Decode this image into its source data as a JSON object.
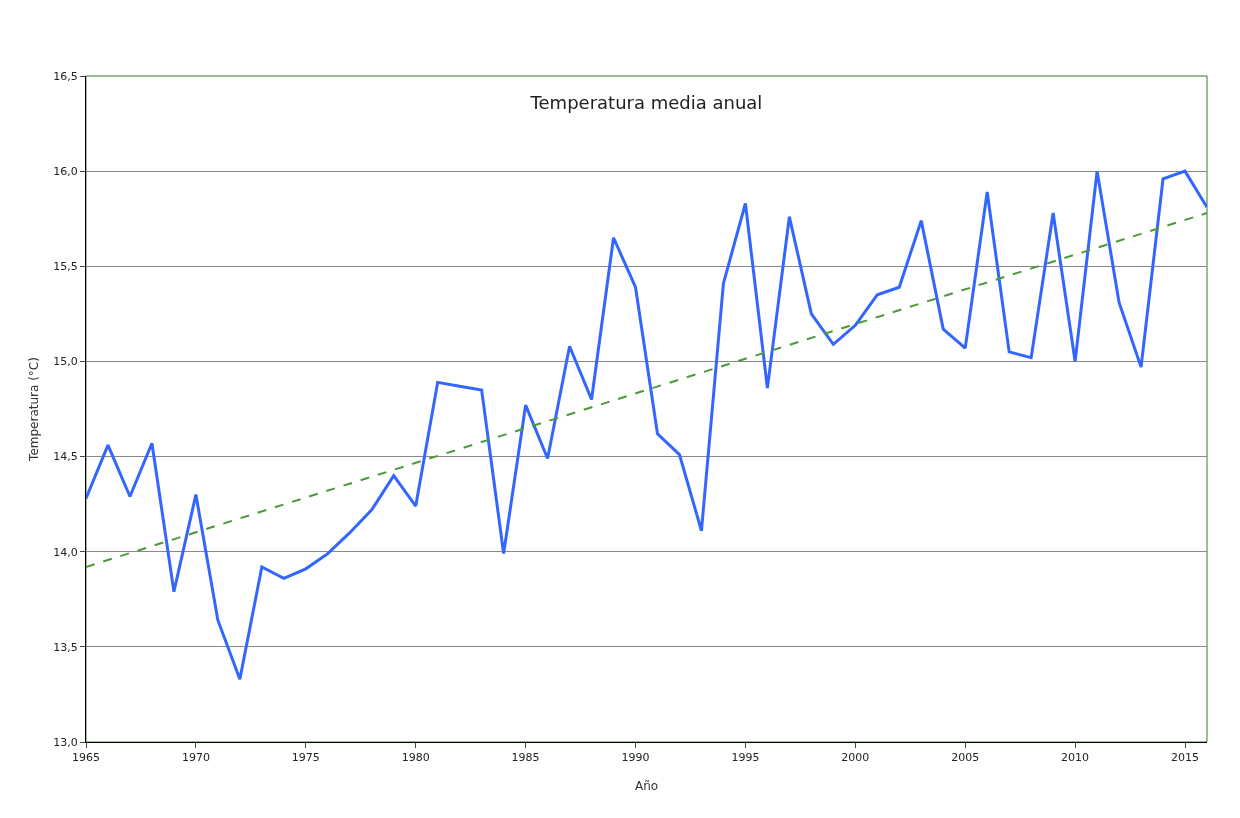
{
  "chart_data": {
    "type": "line",
    "title": "Temperatura media anual",
    "xlabel": "Año",
    "ylabel": "Temperatura (°C)",
    "x": [
      1965,
      1966,
      1967,
      1968,
      1969,
      1970,
      1971,
      1972,
      1973,
      1974,
      1975,
      1976,
      1977,
      1978,
      1979,
      1980,
      1981,
      1982,
      1983,
      1984,
      1985,
      1986,
      1987,
      1988,
      1989,
      1990,
      1991,
      1992,
      1993,
      1994,
      1995,
      1996,
      1997,
      1998,
      1999,
      2000,
      2001,
      2002,
      2003,
      2004,
      2005,
      2006,
      2007,
      2008,
      2009,
      2010,
      2011,
      2012,
      2013,
      2014,
      2015,
      2016
    ],
    "series": [
      {
        "color": "#3366ff",
        "line_style": "solid",
        "values": [
          14.28,
          14.56,
          14.29,
          14.57,
          13.79,
          14.3,
          13.64,
          13.33,
          13.92,
          13.86,
          13.91,
          13.99,
          14.1,
          14.22,
          14.4,
          14.24,
          14.89,
          14.87,
          14.85,
          13.99,
          14.77,
          14.49,
          15.08,
          14.8,
          15.65,
          15.39,
          14.62,
          14.51,
          14.11,
          15.41,
          15.83,
          14.86,
          15.76,
          15.25,
          15.09,
          15.19,
          15.35,
          15.39,
          15.74,
          15.17,
          15.07,
          15.89,
          15.05,
          15.02,
          15.78,
          15.0,
          16.0,
          15.31,
          14.97,
          15.96,
          16.0,
          15.81
        ]
      },
      {
        "type": "line",
        "color": "#4a9a3a",
        "line_style": "dashed",
        "x": [
          1965,
          2016
        ],
        "values": [
          13.92,
          15.78
        ]
      }
    ],
    "xlim": [
      1965,
      2016
    ],
    "xticks": [
      1965,
      1970,
      1975,
      1980,
      1985,
      1990,
      1995,
      2000,
      2005,
      2010,
      2015
    ],
    "ylim": [
      13.0,
      16.5
    ],
    "yticks": [
      {
        "value": 13.0,
        "label": "13,0"
      },
      {
        "value": 13.5,
        "label": "13,5"
      },
      {
        "value": 14.0,
        "label": "14,0"
      },
      {
        "value": 14.5,
        "label": "14,5"
      },
      {
        "value": 15.0,
        "label": "15,0"
      },
      {
        "value": 15.5,
        "label": "15,5"
      },
      {
        "value": 16.0,
        "label": "16,0"
      },
      {
        "value": 16.5,
        "label": "16,5"
      }
    ],
    "grid": "y",
    "marker": "none"
  }
}
